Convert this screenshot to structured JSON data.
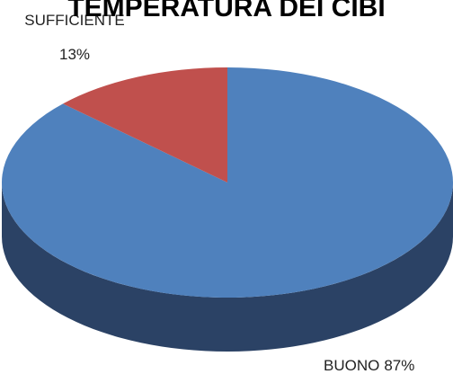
{
  "chart_data": {
    "type": "pie",
    "title": "TEMPERATURA DEI CIBI",
    "categories": [
      "BUONO",
      "SUFFICIENTE"
    ],
    "values": [
      87,
      13
    ],
    "value_labels": [
      "87%",
      "13%"
    ],
    "colors": [
      "#4f81bd",
      "#c0504d"
    ],
    "three_d": true
  }
}
